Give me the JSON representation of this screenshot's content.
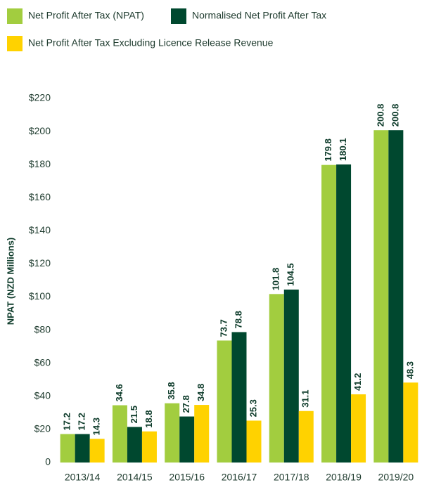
{
  "chart_data": {
    "type": "bar",
    "y_label": "NPAT (NZD Millions)",
    "categories": [
      "2013/14",
      "2014/15",
      "2015/16",
      "2016/17",
      "2017/18",
      "2018/19",
      "2019/20"
    ],
    "series": [
      {
        "name": "Net Profit After Tax (NPAT)",
        "color": "#a2cd3f",
        "values": [
          17.2,
          34.6,
          35.8,
          73.7,
          101.8,
          179.8,
          200.8
        ]
      },
      {
        "name": "Normalised Net Profit After Tax",
        "color": "#00482f",
        "values": [
          17.2,
          21.5,
          27.8,
          78.8,
          104.5,
          180.1,
          200.8
        ]
      },
      {
        "name": "Net Profit After Tax Excluding Licence Release Revenue",
        "color": "#ffd200",
        "values": [
          14.3,
          18.8,
          34.8,
          25.3,
          31.1,
          41.2,
          48.3
        ]
      }
    ],
    "ylim": [
      0,
      220
    ],
    "yticks": [
      0,
      {
        "value": 20,
        "label": "$20"
      },
      {
        "value": 40,
        "label": "$40"
      },
      {
        "value": 60,
        "label": "$60"
      },
      {
        "value": 80,
        "label": "$80"
      },
      {
        "value": 100,
        "label": "$100"
      },
      {
        "value": 120,
        "label": "$120"
      },
      {
        "value": 140,
        "label": "$140"
      },
      {
        "value": 160,
        "label": "$160"
      },
      {
        "value": 180,
        "label": "$180"
      },
      {
        "value": 200,
        "label": "$200"
      },
      {
        "value": 220,
        "label": "$220"
      }
    ],
    "grid": false
  }
}
